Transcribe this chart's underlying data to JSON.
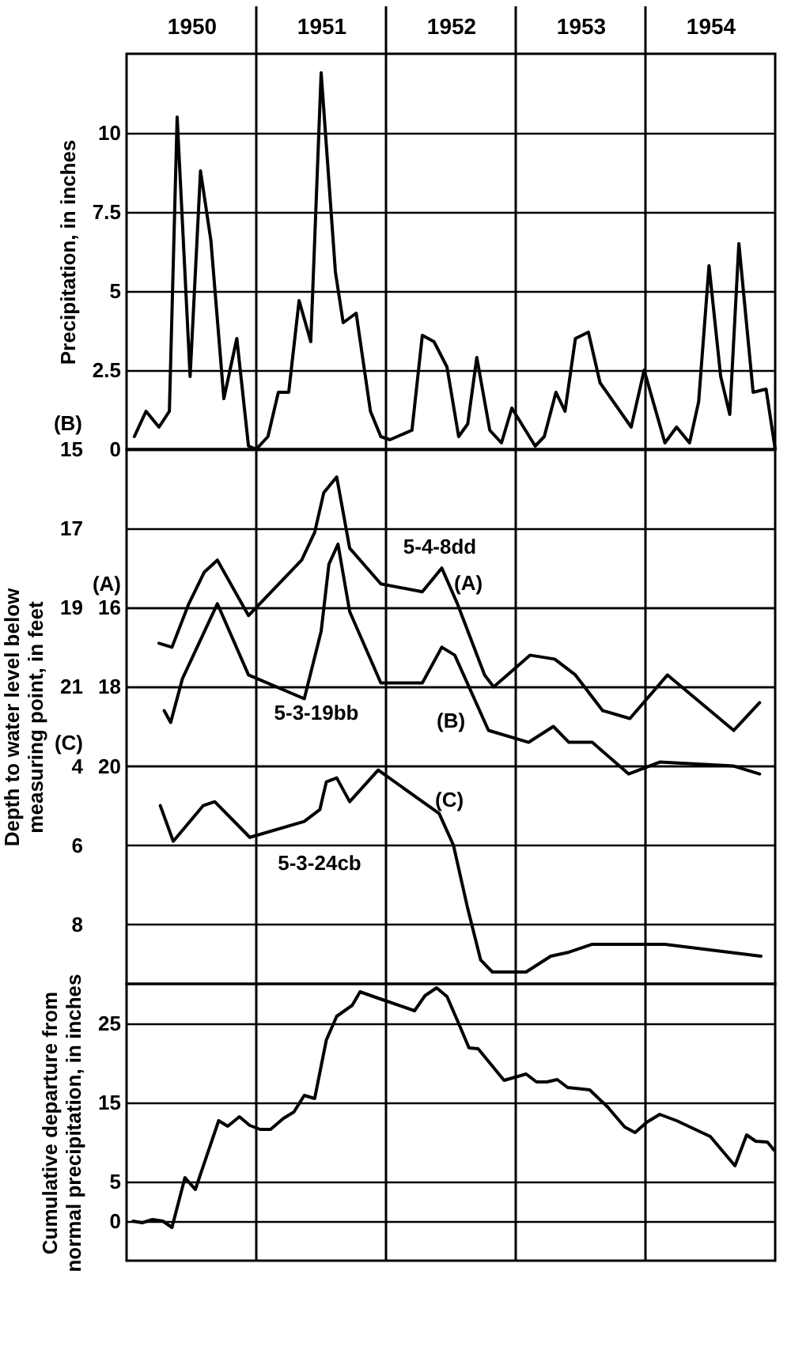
{
  "chart_data": [
    {
      "type": "line",
      "xlim": [
        1950,
        1955
      ],
      "xticks": [
        {
          "value": 1950.5,
          "label": "1950"
        },
        {
          "value": 1951.5,
          "label": "1951"
        },
        {
          "value": 1952.5,
          "label": "1952"
        },
        {
          "value": 1953.5,
          "label": "1953"
        },
        {
          "value": 1954.5,
          "label": "1954"
        }
      ],
      "ylim": [
        0,
        12.5
      ],
      "yticks": [
        0,
        2.5,
        5,
        7.5,
        10
      ],
      "ylabel": "Precipitation, in inches",
      "grid": "y",
      "ref_lines": [
        {
          "axis": "x",
          "value": 1951
        },
        {
          "axis": "x",
          "value": 1952
        },
        {
          "axis": "x",
          "value": 1953
        },
        {
          "axis": "x",
          "value": 1954
        }
      ],
      "series": [
        {
          "color": "#000000",
          "x": [
            1950.06,
            1950.15,
            1950.25,
            1950.33,
            1950.39,
            1950.49,
            1950.57,
            1950.65,
            1950.75,
            1950.85,
            1950.94,
            1951.0,
            1951.09,
            1951.17,
            1951.25,
            1951.33,
            1951.42,
            1951.5,
            1951.61,
            1951.67,
            1951.77,
            1951.88,
            1951.96,
            1952.03,
            1952.2,
            1952.28,
            1952.37,
            1952.47,
            1952.56,
            1952.63,
            1952.7,
            1952.8,
            1952.89,
            1952.97,
            1953.15,
            1953.22,
            1953.31,
            1953.38,
            1953.46,
            1953.56,
            1953.65,
            1953.89,
            1953.99,
            1954.15,
            1954.24,
            1954.34,
            1954.41,
            1954.49,
            1954.58,
            1954.65,
            1954.72,
            1954.83,
            1954.93,
            1955.0
          ],
          "values": [
            0.4,
            1.2,
            0.7,
            1.2,
            10.5,
            2.3,
            8.8,
            6.6,
            1.6,
            3.5,
            0.1,
            0.0,
            0.4,
            1.8,
            1.8,
            4.7,
            3.4,
            11.9,
            5.6,
            4.0,
            4.3,
            1.2,
            0.4,
            0.3,
            0.6,
            3.6,
            3.4,
            2.6,
            0.4,
            0.8,
            2.9,
            0.6,
            0.2,
            1.3,
            0.1,
            0.4,
            1.8,
            1.2,
            3.5,
            3.7,
            2.1,
            0.7,
            2.5,
            0.2,
            0.7,
            0.2,
            1.5,
            5.8,
            2.3,
            1.1,
            6.5,
            1.8,
            1.9,
            0.0
          ]
        }
      ]
    },
    {
      "type": "line",
      "xlim": [
        1950,
        1955
      ],
      "tick_labels": "y",
      "ylim": [
        28.5,
        15
      ],
      "yticks": [
        15,
        17,
        19,
        21
      ],
      "y2lim": [
        25.5,
        12
      ],
      "y2ticks": [
        16,
        18,
        20
      ],
      "y3lim": [
        9.5,
        -4
      ],
      "y3ticks": [
        4,
        6,
        8
      ],
      "ylabel": "Depth to water level below measuring point, in feet",
      "y2label": "(A)",
      "y3label": "(C)",
      "grid": "y",
      "ref_lines": [
        {
          "axis": "x",
          "value": 1951
        },
        {
          "axis": "x",
          "value": 1952
        },
        {
          "axis": "x",
          "value": 1953
        },
        {
          "axis": "x",
          "value": 1954
        }
      ],
      "annotations": [
        "(B)",
        "5-4-8dd",
        "(A)",
        "5-3-19bb",
        "(B)",
        "(C)",
        "5-3-24cb"
      ],
      "series": [
        {
          "color": "#000000",
          "axis": "y",
          "x": [
            1950.29,
            1950.34,
            1950.43,
            1950.7,
            1950.94,
            1951.37,
            1951.5,
            1951.56,
            1951.63,
            1951.72,
            1951.96,
            1952.28,
            1952.43,
            1952.53,
            1952.79,
            1953.1,
            1953.29,
            1953.41,
            1953.59,
            1953.87,
            1954.11,
            1954.68,
            1954.88
          ],
          "values": [
            21.6,
            21.9,
            20.8,
            18.9,
            20.7,
            21.3,
            19.6,
            17.9,
            17.4,
            19.1,
            20.9,
            20.9,
            20.0,
            20.2,
            22.1,
            22.4,
            22.0,
            22.4,
            22.4,
            23.2,
            22.9,
            23.0,
            23.2
          ]
        },
        {
          "color": "#000000",
          "axis": "y2",
          "x": [
            1950.25,
            1950.35,
            1950.48,
            1950.6,
            1950.7,
            1950.94,
            1951.35,
            1951.45,
            1951.52,
            1951.62,
            1951.72,
            1951.96,
            1952.28,
            1952.43,
            1952.55,
            1952.76,
            1952.83,
            1953.11,
            1953.3,
            1953.46,
            1953.67,
            1953.88,
            1954.17,
            1954.68,
            1954.88
          ],
          "values": [
            16.9,
            17.0,
            15.9,
            15.1,
            14.8,
            16.2,
            14.8,
            14.1,
            13.1,
            12.7,
            14.5,
            15.4,
            15.6,
            15.0,
            15.9,
            17.7,
            18.0,
            17.2,
            17.3,
            17.7,
            18.6,
            18.8,
            17.7,
            19.1,
            18.4
          ]
        },
        {
          "color": "#000000",
          "axis": "y3",
          "x": [
            1950.26,
            1950.36,
            1950.59,
            1950.68,
            1950.95,
            1951.37,
            1951.49,
            1951.54,
            1951.62,
            1951.72,
            1951.94,
            1952.41,
            1952.52,
            1952.63,
            1952.73,
            1952.82,
            1953.08,
            1953.27,
            1953.41,
            1953.59,
            1954.15,
            1954.89
          ],
          "values": [
            5.0,
            5.9,
            5.0,
            4.9,
            5.8,
            5.4,
            5.1,
            4.4,
            4.3,
            4.9,
            4.1,
            5.2,
            6.0,
            7.6,
            8.9,
            9.2,
            9.2,
            8.8,
            8.7,
            8.5,
            8.5,
            8.8
          ]
        }
      ]
    },
    {
      "type": "line",
      "xlim": [
        1950,
        1955
      ],
      "tick_labels": "y",
      "ylim": [
        -5,
        30
      ],
      "yticks": [
        0,
        5,
        15,
        25
      ],
      "ylabel": "Cumulative departure from normal precipitation, in inches",
      "grid": "y",
      "ref_lines": [
        {
          "axis": "x",
          "value": 1951
        },
        {
          "axis": "x",
          "value": 1952
        },
        {
          "axis": "x",
          "value": 1953
        },
        {
          "axis": "x",
          "value": 1954
        }
      ],
      "series": [
        {
          "color": "#000000",
          "x": [
            1950.05,
            1950.12,
            1950.2,
            1950.28,
            1950.35,
            1950.45,
            1950.53,
            1950.71,
            1950.78,
            1950.87,
            1950.95,
            1951.03,
            1951.11,
            1951.21,
            1951.29,
            1951.37,
            1951.45,
            1951.54,
            1951.62,
            1951.74,
            1951.8,
            1951.92,
            1952.22,
            1952.3,
            1952.39,
            1952.47,
            1952.56,
            1952.64,
            1952.71,
            1952.91,
            1953.08,
            1953.16,
            1953.24,
            1953.32,
            1953.4,
            1953.57,
            1953.71,
            1953.84,
            1953.92,
            1954.01,
            1954.11,
            1954.24,
            1954.5,
            1954.69,
            1954.78,
            1954.85,
            1954.94,
            1954.99
          ],
          "values": [
            0.0,
            -0.2,
            0.2,
            0.0,
            -0.8,
            5.5,
            4.0,
            12.7,
            12.0,
            13.2,
            12.1,
            11.6,
            11.6,
            13.0,
            13.8,
            15.9,
            15.5,
            22.9,
            25.9,
            27.3,
            29.0,
            28.3,
            26.6,
            28.5,
            29.5,
            28.4,
            25.0,
            21.9,
            21.8,
            17.8,
            18.6,
            17.6,
            17.6,
            17.9,
            16.9,
            16.6,
            14.4,
            11.9,
            11.2,
            12.5,
            13.5,
            12.7,
            10.7,
            7.0,
            10.9,
            10.1,
            10.0,
            9.0
          ]
        }
      ]
    }
  ]
}
